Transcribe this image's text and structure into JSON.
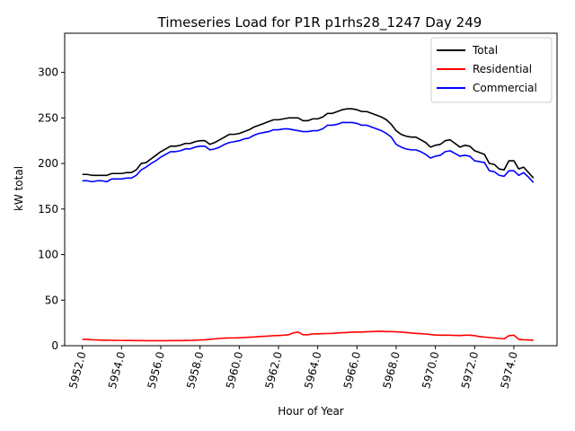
{
  "chart_data": {
    "type": "line",
    "title": "Timeseries Load for P1R p1rhs28_1247  Day 249",
    "xlabel": "Hour of Year",
    "ylabel": "kW total",
    "xlim": [
      5951.1,
      5976.2
    ],
    "ylim": [
      0,
      343
    ],
    "x_ticks": [
      5952,
      5954,
      5956,
      5958,
      5960,
      5962,
      5964,
      5966,
      5968,
      5970,
      5972,
      5974
    ],
    "x_tick_labels": [
      "5952.0",
      "5954.0",
      "5956.0",
      "5958.0",
      "5960.0",
      "5962.0",
      "5964.0",
      "5966.0",
      "5968.0",
      "5970.0",
      "5972.0",
      "5974.0"
    ],
    "y_ticks": [
      0,
      50,
      100,
      150,
      200,
      250,
      300
    ],
    "y_tick_labels": [
      "0",
      "50",
      "100",
      "150",
      "200",
      "250",
      "300"
    ],
    "legend_position": "top-right",
    "grid": false,
    "x_start": 5952.0,
    "x_step": 0.25,
    "series": [
      {
        "name": "Total",
        "color": "#000000",
        "values": [
          188,
          188,
          187,
          187,
          187,
          187,
          189,
          189,
          189,
          190,
          190,
          193,
          200,
          201,
          205,
          209,
          213,
          216,
          219,
          219,
          220,
          222,
          222,
          224,
          225,
          225,
          221,
          223,
          226,
          229,
          232,
          232,
          233,
          235,
          237,
          240,
          242,
          244,
          246,
          248,
          248,
          249,
          250,
          250,
          250,
          247,
          247,
          249,
          249,
          251,
          255,
          255,
          257,
          259,
          260,
          260,
          259,
          257,
          257,
          255,
          253,
          251,
          248,
          243,
          236,
          232,
          230,
          229,
          229,
          226,
          223,
          218,
          220,
          221,
          225,
          226,
          222,
          218,
          220,
          219,
          214,
          212,
          210,
          200,
          199,
          194,
          193,
          203,
          203,
          194,
          196,
          190,
          184
        ]
      },
      {
        "name": "Residential",
        "color": "#ff0000",
        "values": [
          7,
          7,
          6.5,
          6.3,
          6.1,
          6,
          5.9,
          5.8,
          5.8,
          5.7,
          5.7,
          5.6,
          5.6,
          5.5,
          5.5,
          5.5,
          5.5,
          5.5,
          5.6,
          5.6,
          5.6,
          5.7,
          5.8,
          6,
          6.3,
          6.5,
          7,
          7.5,
          8,
          8.3,
          8.5,
          8.5,
          8.7,
          9,
          9.3,
          9.5,
          10,
          10.3,
          10.6,
          11,
          11.2,
          11.5,
          12,
          14,
          15,
          12,
          12,
          13,
          13,
          13.2,
          13.3,
          13.5,
          14,
          14.2,
          14.5,
          14.8,
          15,
          15,
          15.3,
          15.5,
          15.7,
          15.8,
          15.5,
          15.5,
          15.2,
          15,
          14.5,
          14,
          13.5,
          13.2,
          12.8,
          12.3,
          11.8,
          11.5,
          11.5,
          11.5,
          11.3,
          11.2,
          11.5,
          11.5,
          11,
          10,
          9.5,
          9,
          8.5,
          8,
          7.5,
          11,
          11.5,
          7,
          6.5,
          6.3,
          6
        ]
      },
      {
        "name": "Commercial",
        "color": "#0000ff",
        "values": [
          181,
          181,
          180,
          181,
          181,
          180,
          183,
          183,
          183,
          184,
          184,
          187,
          193,
          196,
          200,
          203,
          207,
          210,
          213,
          213,
          214,
          216,
          216,
          218,
          219,
          219,
          215,
          216,
          218,
          221,
          223,
          224,
          225,
          227,
          228,
          231,
          233,
          234,
          235,
          237,
          237,
          238,
          238,
          237,
          236,
          235,
          235,
          236,
          236,
          238,
          242,
          242,
          243,
          245,
          245,
          245,
          244,
          242,
          242,
          240,
          238,
          236,
          233,
          229,
          221,
          218,
          216,
          215,
          215,
          213,
          210,
          206,
          208,
          209,
          213,
          214,
          211,
          208,
          209,
          208,
          203,
          202,
          201,
          192,
          191,
          187,
          186,
          192,
          192,
          187,
          190,
          185,
          179
        ]
      }
    ]
  }
}
